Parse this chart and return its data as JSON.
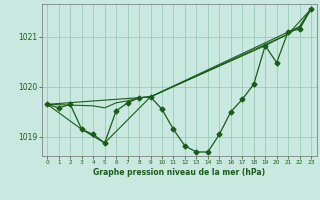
{
  "title": "Graphe pression niveau de la mer (hPa)",
  "bg_color": "#c8e8e0",
  "line_color": "#1a5c1a",
  "grid_color": "#90c8b0",
  "xlabel_color": "#1a5c1a",
  "xlim": [
    -0.5,
    23.5
  ],
  "ylim": [
    1018.62,
    1021.65
  ],
  "yticks": [
    1019,
    1020,
    1021
  ],
  "xticks": [
    0,
    1,
    2,
    3,
    4,
    5,
    6,
    7,
    8,
    9,
    10,
    11,
    12,
    13,
    14,
    15,
    16,
    17,
    18,
    19,
    20,
    21,
    22,
    23
  ],
  "series1_x": [
    0,
    1,
    2,
    3,
    4,
    5,
    6,
    7,
    8,
    9,
    10,
    11,
    12,
    13,
    14,
    15,
    16,
    17,
    18,
    19,
    20,
    21,
    22,
    23
  ],
  "series1_y": [
    1019.65,
    1019.58,
    1019.65,
    1019.15,
    1019.05,
    1018.88,
    1019.52,
    1019.68,
    1019.78,
    1019.8,
    1019.55,
    1019.15,
    1018.82,
    1018.7,
    1018.7,
    1019.05,
    1019.5,
    1019.75,
    1020.05,
    1020.82,
    1020.48,
    1021.1,
    1021.15,
    1021.55
  ],
  "series2_x": [
    0,
    4,
    5,
    6,
    7,
    8,
    9,
    21,
    22,
    23
  ],
  "series2_y": [
    1019.65,
    1019.62,
    1019.58,
    1019.68,
    1019.72,
    1019.78,
    1019.8,
    1021.05,
    1021.2,
    1021.55
  ],
  "series3_x": [
    0,
    9,
    22,
    23
  ],
  "series3_y": [
    1019.65,
    1019.8,
    1021.2,
    1021.55
  ],
  "series4_x": [
    0,
    3,
    5,
    9,
    19,
    21,
    23
  ],
  "series4_y": [
    1019.65,
    1019.15,
    1018.88,
    1019.8,
    1020.82,
    1021.05,
    1021.55
  ],
  "marker": "D",
  "markersize": 2.5,
  "lw1": 0.9,
  "lw2": 0.8
}
